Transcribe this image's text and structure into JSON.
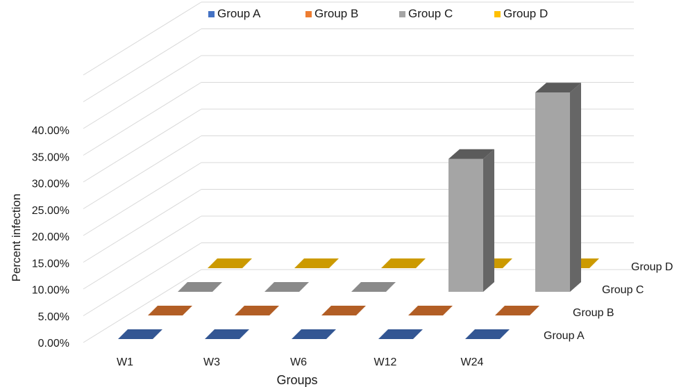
{
  "chart_data": {
    "type": "bar",
    "title": "",
    "xlabel": "Groups",
    "ylabel": "Percent infection",
    "ylim": [
      0,
      40
    ],
    "y_ticks": [
      "0.00%",
      "5.00%",
      "10.00%",
      "15.00%",
      "20.00%",
      "25.00%",
      "30.00%",
      "35.00%",
      "40.00%"
    ],
    "categories": [
      "W1",
      "W3",
      "W6",
      "W12",
      "W24"
    ],
    "series": [
      {
        "name": "Group A",
        "color": "#4472C4",
        "values": [
          0,
          0,
          0,
          0,
          0
        ]
      },
      {
        "name": "Group B",
        "color": "#ED7D31",
        "values": [
          0,
          0,
          0,
          0,
          0
        ]
      },
      {
        "name": "Group C",
        "color": "#A5A5A5",
        "values": [
          0,
          0,
          0,
          25,
          37.5
        ]
      },
      {
        "name": "Group D",
        "color": "#FFC000",
        "values": [
          0,
          0,
          0,
          0,
          0
        ]
      }
    ],
    "legend_position": "top",
    "grid": true,
    "chart_style": "3d-column"
  }
}
